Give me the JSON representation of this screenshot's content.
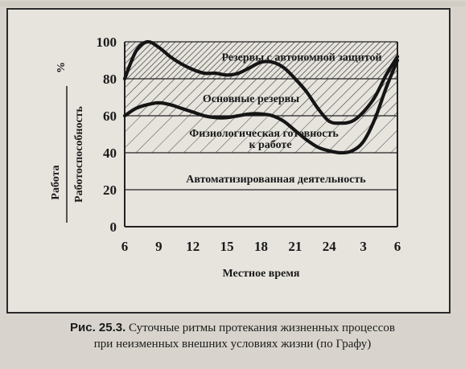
{
  "chart_data": {
    "type": "line",
    "xlabel": "Местное время",
    "ylabel_top": "Работа",
    "ylabel_bottom": "Работоспособность",
    "ylabel_unit": "%",
    "x_ticks": [
      "6",
      "9",
      "12",
      "15",
      "18",
      "21",
      "24",
      "3",
      "6"
    ],
    "y_ticks": [
      0,
      20,
      40,
      60,
      80,
      100
    ],
    "ylim": [
      0,
      100
    ],
    "xlim_hours": [
      6,
      30
    ],
    "zones": [
      {
        "label": "Резервы с автономной защитой",
        "range": [
          80,
          100
        ],
        "hatch": "dense"
      },
      {
        "label": "Основные резервы",
        "range": [
          60,
          80
        ],
        "hatch": "diagonal"
      },
      {
        "label_line1": "Физиологическая готовность",
        "label_line2": "к работе",
        "range": [
          40,
          60
        ],
        "hatch": "sparse"
      },
      {
        "label": "Автоматизированная деятельность",
        "range": [
          0,
          40
        ],
        "hatch": "none"
      }
    ],
    "series": [
      {
        "x": [
          6,
          7,
          8,
          9,
          10,
          11,
          12,
          13,
          14,
          15,
          16,
          17,
          18,
          19,
          20,
          21,
          22,
          23,
          24,
          25,
          26,
          27,
          28,
          29,
          30
        ],
        "y": [
          80,
          95,
          100,
          97,
          92,
          88,
          85,
          83,
          83,
          82,
          83,
          86,
          89,
          89,
          86,
          80,
          73,
          64,
          57,
          56,
          57,
          62,
          70,
          82,
          92
        ]
      },
      {
        "x": [
          6,
          7,
          8,
          9,
          10,
          11,
          12,
          13,
          14,
          15,
          16,
          17,
          18,
          19,
          20,
          21,
          22,
          23,
          24,
          25,
          26,
          27,
          28,
          29,
          30
        ],
        "y": [
          60,
          64,
          66,
          67,
          66,
          64,
          62,
          60,
          59,
          59,
          60,
          61,
          61,
          60,
          57,
          52,
          47,
          43,
          41,
          40,
          41,
          46,
          58,
          75,
          90
        ]
      }
    ]
  },
  "caption": {
    "ref": "Рис. 25.3.",
    "line1": "Суточные ритмы протекания жизненных процессов",
    "line2": "при неизменных внешних условиях жизни (по Графу)"
  }
}
